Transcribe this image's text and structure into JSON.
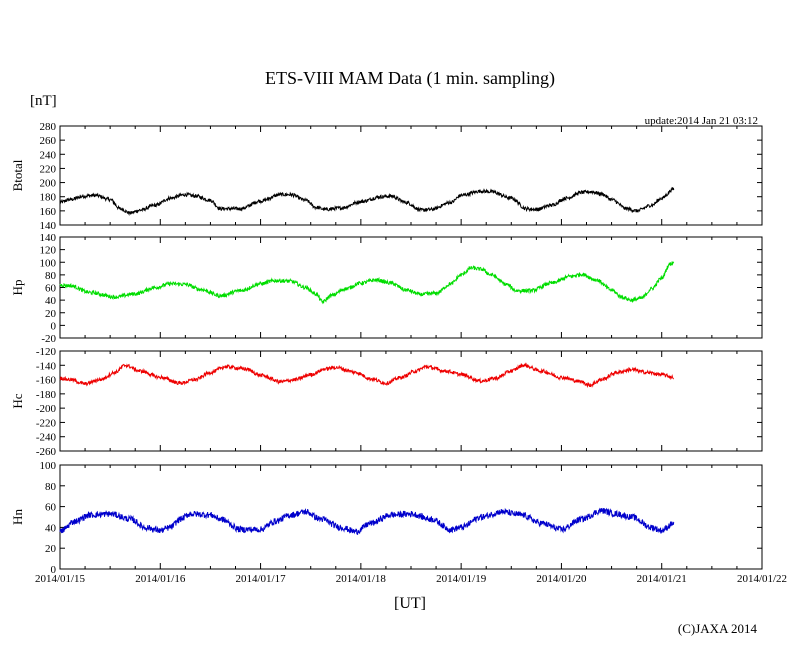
{
  "header": {
    "title": "ETS-VIII MAM Data (1 min. sampling)",
    "unit": "[nT]",
    "update": "update:2014 Jan 21 03:12",
    "xlabel": "[UT]",
    "copyright": "(C)JAXA 2014"
  },
  "chart_data": {
    "type": "line",
    "x_ticks": [
      "2014/01/15",
      "2014/01/16",
      "2014/01/17",
      "2014/01/18",
      "2014/01/19",
      "2014/01/20",
      "2014/01/21",
      "2014/01/22"
    ],
    "x_range_days": [
      0,
      7
    ],
    "x_origin_label": "2014/01/15",
    "panels": [
      {
        "label": "Btotal",
        "color": "#000000",
        "ylim": [
          140,
          280
        ],
        "yticks": [
          140,
          160,
          180,
          200,
          220,
          240,
          260,
          280
        ],
        "noise": 2.5,
        "points": [
          [
            0.0,
            172
          ],
          [
            0.1,
            176
          ],
          [
            0.25,
            181
          ],
          [
            0.35,
            182
          ],
          [
            0.5,
            176
          ],
          [
            0.6,
            163
          ],
          [
            0.7,
            157
          ],
          [
            0.8,
            161
          ],
          [
            0.95,
            168
          ],
          [
            1.1,
            178
          ],
          [
            1.25,
            183
          ],
          [
            1.35,
            181
          ],
          [
            1.5,
            175
          ],
          [
            1.6,
            163
          ],
          [
            1.8,
            163
          ],
          [
            2.0,
            174
          ],
          [
            2.2,
            183
          ],
          [
            2.3,
            183
          ],
          [
            2.45,
            175
          ],
          [
            2.55,
            165
          ],
          [
            2.65,
            162
          ],
          [
            2.8,
            164
          ],
          [
            3.0,
            173
          ],
          [
            3.2,
            180
          ],
          [
            3.3,
            181
          ],
          [
            3.45,
            172
          ],
          [
            3.6,
            161
          ],
          [
            3.7,
            162
          ],
          [
            3.9,
            172
          ],
          [
            4.0,
            182
          ],
          [
            4.2,
            188
          ],
          [
            4.3,
            187
          ],
          [
            4.5,
            178
          ],
          [
            4.65,
            163
          ],
          [
            4.75,
            162
          ],
          [
            4.9,
            168
          ],
          [
            5.05,
            178
          ],
          [
            5.2,
            186
          ],
          [
            5.3,
            187
          ],
          [
            5.4,
            184
          ],
          [
            5.5,
            176
          ],
          [
            5.65,
            163
          ],
          [
            5.75,
            160
          ],
          [
            5.9,
            168
          ],
          [
            6.0,
            178
          ],
          [
            6.12,
            191
          ]
        ]
      },
      {
        "label": "Hp",
        "color": "#00dd00",
        "ylim": [
          -20,
          140
        ],
        "yticks": [
          -20,
          0,
          20,
          40,
          60,
          80,
          100,
          120,
          140
        ],
        "noise": 3,
        "points": [
          [
            0.0,
            64
          ],
          [
            0.1,
            63
          ],
          [
            0.3,
            52
          ],
          [
            0.55,
            45
          ],
          [
            0.75,
            50
          ],
          [
            0.95,
            60
          ],
          [
            1.1,
            66
          ],
          [
            1.25,
            65
          ],
          [
            1.4,
            57
          ],
          [
            1.6,
            47
          ],
          [
            1.8,
            55
          ],
          [
            2.0,
            66
          ],
          [
            2.15,
            71
          ],
          [
            2.3,
            70
          ],
          [
            2.45,
            60
          ],
          [
            2.55,
            50
          ],
          [
            2.62,
            37
          ],
          [
            2.7,
            47
          ],
          [
            2.85,
            58
          ],
          [
            3.0,
            67
          ],
          [
            3.15,
            72
          ],
          [
            3.3,
            67
          ],
          [
            3.45,
            56
          ],
          [
            3.6,
            49
          ],
          [
            3.75,
            51
          ],
          [
            3.9,
            66
          ],
          [
            4.0,
            80
          ],
          [
            4.1,
            91
          ],
          [
            4.2,
            89
          ],
          [
            4.3,
            80
          ],
          [
            4.45,
            65
          ],
          [
            4.55,
            55
          ],
          [
            4.7,
            55
          ],
          [
            4.9,
            67
          ],
          [
            5.1,
            78
          ],
          [
            5.2,
            81
          ],
          [
            5.35,
            72
          ],
          [
            5.5,
            56
          ],
          [
            5.6,
            45
          ],
          [
            5.7,
            40
          ],
          [
            5.8,
            43
          ],
          [
            5.9,
            58
          ],
          [
            6.0,
            75
          ],
          [
            6.08,
            97
          ],
          [
            6.12,
            100
          ]
        ]
      },
      {
        "label": "Hc",
        "color": "#ee0000",
        "ylim": [
          -260,
          -120
        ],
        "yticks": [
          -260,
          -240,
          -220,
          -200,
          -180,
          -160,
          -140,
          -120
        ],
        "noise": 2.5,
        "points": [
          [
            0.0,
            -158
          ],
          [
            0.1,
            -160
          ],
          [
            0.25,
            -166
          ],
          [
            0.4,
            -160
          ],
          [
            0.55,
            -150
          ],
          [
            0.65,
            -140
          ],
          [
            0.8,
            -148
          ],
          [
            1.0,
            -157
          ],
          [
            1.2,
            -165
          ],
          [
            1.35,
            -160
          ],
          [
            1.5,
            -150
          ],
          [
            1.65,
            -142
          ],
          [
            1.85,
            -145
          ],
          [
            2.0,
            -154
          ],
          [
            2.2,
            -163
          ],
          [
            2.35,
            -160
          ],
          [
            2.5,
            -153
          ],
          [
            2.65,
            -145
          ],
          [
            2.75,
            -143
          ],
          [
            2.95,
            -150
          ],
          [
            3.1,
            -159
          ],
          [
            3.25,
            -165
          ],
          [
            3.4,
            -157
          ],
          [
            3.55,
            -148
          ],
          [
            3.65,
            -142
          ],
          [
            3.85,
            -148
          ],
          [
            4.0,
            -153
          ],
          [
            4.2,
            -162
          ],
          [
            4.35,
            -158
          ],
          [
            4.5,
            -148
          ],
          [
            4.62,
            -140
          ],
          [
            4.8,
            -148
          ],
          [
            5.0,
            -157
          ],
          [
            5.2,
            -163
          ],
          [
            5.28,
            -168
          ],
          [
            5.4,
            -160
          ],
          [
            5.55,
            -150
          ],
          [
            5.7,
            -146
          ],
          [
            5.85,
            -150
          ],
          [
            6.0,
            -153
          ],
          [
            6.12,
            -157
          ]
        ]
      },
      {
        "label": "Hn",
        "color": "#0000cc",
        "ylim": [
          0,
          100
        ],
        "yticks": [
          0,
          20,
          40,
          60,
          80,
          100
        ],
        "noise": 3,
        "points": [
          [
            0.0,
            36
          ],
          [
            0.15,
            46
          ],
          [
            0.3,
            52
          ],
          [
            0.5,
            53
          ],
          [
            0.7,
            48
          ],
          [
            0.85,
            40
          ],
          [
            1.0,
            37
          ],
          [
            1.1,
            40
          ],
          [
            1.2,
            48
          ],
          [
            1.3,
            53
          ],
          [
            1.5,
            52
          ],
          [
            1.6,
            48
          ],
          [
            1.8,
            38
          ],
          [
            2.0,
            38
          ],
          [
            2.15,
            46
          ],
          [
            2.3,
            52
          ],
          [
            2.45,
            55
          ],
          [
            2.6,
            48
          ],
          [
            2.8,
            40
          ],
          [
            2.95,
            36
          ],
          [
            3.1,
            44
          ],
          [
            3.3,
            52
          ],
          [
            3.5,
            53
          ],
          [
            3.7,
            48
          ],
          [
            3.9,
            38
          ],
          [
            4.0,
            40
          ],
          [
            4.2,
            50
          ],
          [
            4.4,
            55
          ],
          [
            4.6,
            52
          ],
          [
            4.8,
            44
          ],
          [
            5.0,
            38
          ],
          [
            5.2,
            48
          ],
          [
            5.4,
            56
          ],
          [
            5.55,
            53
          ],
          [
            5.7,
            50
          ],
          [
            5.9,
            40
          ],
          [
            6.0,
            37
          ],
          [
            6.12,
            44
          ]
        ]
      }
    ]
  }
}
